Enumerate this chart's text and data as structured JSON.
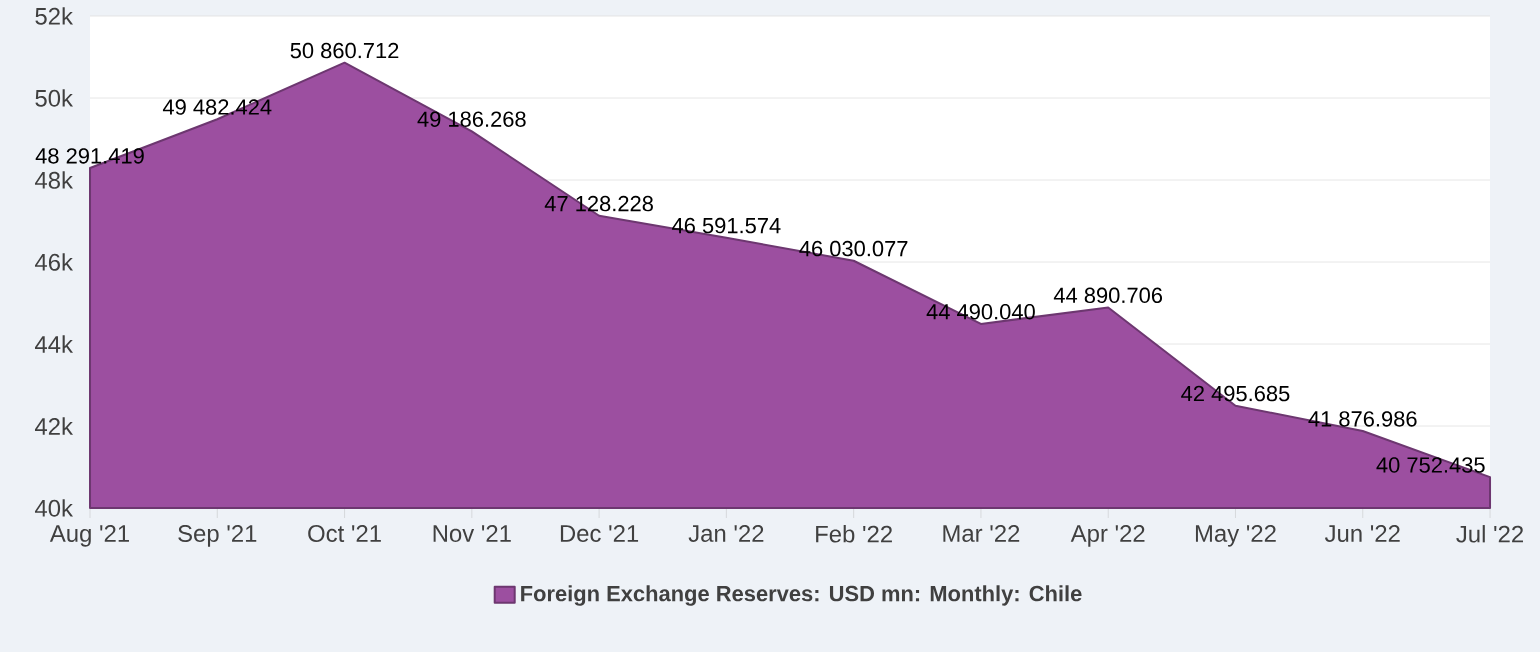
{
  "chart_data": {
    "type": "area",
    "categories": [
      "Aug '21",
      "Sep '21",
      "Oct '21",
      "Nov '21",
      "Dec '21",
      "Jan '22",
      "Feb '22",
      "Mar '22",
      "Apr '22",
      "May '22",
      "Jun '22",
      "Jul '22"
    ],
    "series": [
      {
        "name": "Foreign Exchange Reserves: USD mn: Monthly: Chile",
        "color": "#9c4fa0",
        "values": [
          48291.419,
          49482.424,
          50860.712,
          49186.268,
          47128.228,
          46591.574,
          46030.077,
          44490.04,
          44890.706,
          42495.685,
          41876.986,
          40752.435
        ],
        "value_labels": [
          "48 291.419",
          "49 482.424",
          "50 860.712",
          "49 186.268",
          "47 128.228",
          "46 591.574",
          "46 030.077",
          "44 490.040",
          "44 890.706",
          "42 495.685",
          "41 876.986",
          "40 752.435"
        ]
      }
    ],
    "ylim": [
      40000,
      52000
    ],
    "yticks": [
      {
        "value": 40000,
        "label": "40k"
      },
      {
        "value": 42000,
        "label": "42k"
      },
      {
        "value": 44000,
        "label": "44k"
      },
      {
        "value": 46000,
        "label": "46k"
      },
      {
        "value": 48000,
        "label": "48k"
      },
      {
        "value": 50000,
        "label": "50k"
      },
      {
        "value": 52000,
        "label": "52k"
      }
    ],
    "grid": "y",
    "legend": "bottom"
  }
}
